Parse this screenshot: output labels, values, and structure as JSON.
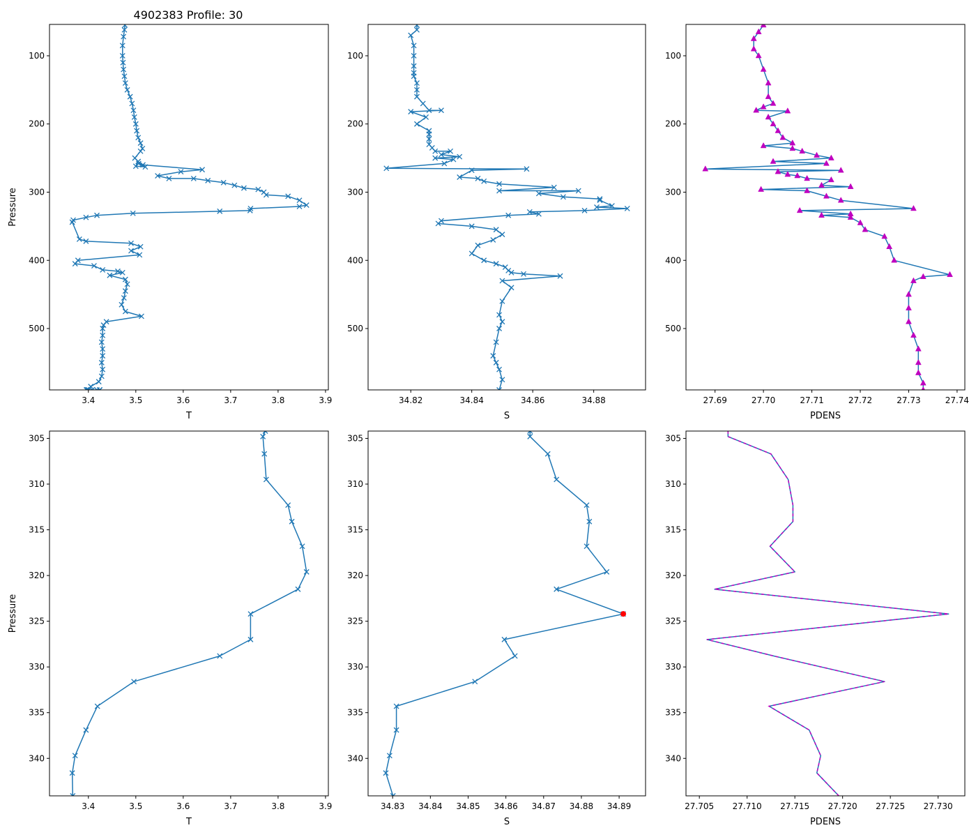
{
  "figure": {
    "title": "4902383 Profile: 30",
    "colors": {
      "line": "#1f77b4",
      "marker_pdens": "#bf00bf",
      "flag": "#ff0000",
      "axis": "#000000",
      "background": "#ffffff"
    }
  },
  "chart_data": [
    {
      "id": "top-T",
      "type": "line",
      "marker": "x",
      "xlabel": "T",
      "ylabel": "Pressure",
      "xlim": [
        3.318,
        3.906
      ],
      "ylim": [
        590,
        54
      ],
      "xticks": [
        3.4,
        3.5,
        3.6,
        3.7,
        3.8,
        3.9
      ],
      "yticks": [
        100,
        200,
        300,
        400,
        500
      ],
      "xtick_labels": [
        "3.4",
        "3.5",
        "3.6",
        "3.7",
        "3.8",
        "3.9"
      ],
      "ytick_labels": [
        "100",
        "200",
        "300",
        "400",
        "500"
      ],
      "x": [
        3.477,
        3.476,
        3.474,
        3.472,
        3.472,
        3.473,
        3.474,
        3.476,
        3.478,
        3.482,
        3.488,
        3.492,
        3.495,
        3.497,
        3.5,
        3.502,
        3.505,
        3.51,
        3.514,
        3.51,
        3.498,
        3.505,
        3.5,
        3.52,
        3.506,
        3.515,
        3.64,
        3.595,
        3.546,
        3.57,
        3.622,
        3.652,
        3.685,
        3.708,
        3.728,
        3.758,
        3.77,
        3.775,
        3.821,
        3.845,
        3.86,
        3.845,
        3.742,
        3.741,
        3.677,
        3.494,
        3.418,
        3.395,
        3.368,
        3.366,
        3.381,
        3.395,
        3.49,
        3.51,
        3.49,
        3.508,
        3.378,
        3.372,
        3.412,
        3.43,
        3.462,
        3.472,
        3.445,
        3.478,
        3.482,
        3.478,
        3.475,
        3.47,
        3.478,
        3.512,
        3.438,
        3.432,
        3.43,
        3.43,
        3.428,
        3.43,
        3.43,
        3.428,
        3.43,
        3.428,
        3.422,
        3.405,
        3.4,
        3.4,
        3.4,
        3.398,
        3.397,
        3.396,
        3.396,
        3.4,
        3.408,
        3.418,
        3.424,
        3.424,
        3.424,
        3.424
      ],
      "y": [
        55,
        62,
        72,
        85,
        100,
        110,
        120,
        130,
        140,
        150,
        160,
        170,
        180,
        190,
        200,
        210,
        220,
        228,
        236,
        240,
        250,
        255,
        262,
        263,
        258,
        260,
        267,
        270,
        276,
        280,
        280,
        283,
        286,
        290,
        294,
        296,
        300,
        304,
        306,
        312,
        319,
        321,
        324,
        327,
        328,
        331,
        334,
        337,
        341,
        344,
        369,
        372,
        375,
        380,
        386,
        392,
        400,
        405,
        408,
        414,
        416,
        418,
        422,
        428,
        435,
        445,
        455,
        465,
        475,
        482,
        490,
        495,
        500,
        510,
        520,
        530,
        540,
        550,
        560,
        570,
        578,
        585,
        590,
        590,
        590,
        590,
        590,
        590,
        590,
        590,
        590,
        590,
        590,
        590,
        590,
        590
      ]
    },
    {
      "id": "top-S",
      "type": "line",
      "marker": "x",
      "xlabel": "S",
      "ylim": [
        590,
        54
      ],
      "xlim": [
        34.806,
        34.897
      ],
      "xticks": [
        34.82,
        34.84,
        34.86,
        34.88
      ],
      "yticks": [
        100,
        200,
        300,
        400,
        500
      ],
      "xtick_labels": [
        "34.82",
        "34.84",
        "34.86",
        "34.88"
      ],
      "ytick_labels": [
        "100",
        "200",
        "300",
        "400",
        "500"
      ],
      "x": [
        34.822,
        34.822,
        34.82,
        34.821,
        34.821,
        34.821,
        34.821,
        34.821,
        34.822,
        34.822,
        34.822,
        34.824,
        34.826,
        34.83,
        34.82,
        34.825,
        34.822,
        34.826,
        34.826,
        34.826,
        34.826,
        34.827,
        34.828,
        34.833,
        34.83,
        34.836,
        34.828,
        34.834,
        34.831,
        34.812,
        34.858,
        34.84,
        34.836,
        34.842,
        34.844,
        34.849,
        34.867,
        34.849,
        34.875,
        34.862,
        34.87,
        34.882,
        34.882,
        34.886,
        34.881,
        34.891,
        34.877,
        34.859,
        34.862,
        34.852,
        34.83,
        34.829,
        34.84,
        34.848,
        34.85,
        34.847,
        34.842,
        34.84,
        34.844,
        34.848,
        34.851,
        34.852,
        34.853,
        34.857,
        34.869,
        34.85,
        34.853,
        34.85,
        34.849,
        34.85,
        34.849,
        34.848,
        34.847,
        34.848,
        34.849,
        34.85,
        34.849
      ],
      "y": [
        55,
        62,
        70,
        85,
        100,
        115,
        125,
        130,
        140,
        150,
        160,
        170,
        180,
        180,
        182,
        190,
        200,
        210,
        215,
        222,
        230,
        235,
        240,
        240,
        245,
        248,
        250,
        252,
        258,
        265,
        266,
        268,
        278,
        280,
        284,
        288,
        293,
        298,
        298,
        302,
        307,
        310,
        312,
        320,
        322,
        324,
        327,
        329,
        332,
        334,
        342,
        346,
        350,
        355,
        362,
        370,
        378,
        390,
        400,
        405,
        410,
        415,
        418,
        420,
        423,
        430,
        440,
        460,
        480,
        490,
        500,
        520,
        540,
        550,
        560,
        575,
        590
      ]
    },
    {
      "id": "top-PDENS",
      "type": "line",
      "marker": "^",
      "xlabel": "PDENS",
      "ylim": [
        590,
        54
      ],
      "xlim": [
        27.684,
        27.7416
      ],
      "xticks": [
        27.69,
        27.7,
        27.71,
        27.72,
        27.73,
        27.74
      ],
      "yticks": [
        100,
        200,
        300,
        400,
        500
      ],
      "xtick_labels": [
        "27.69",
        "27.70",
        "27.71",
        "27.72",
        "27.73",
        "27.74"
      ],
      "ytick_labels": [
        "100",
        "200",
        "300",
        "400",
        "500"
      ],
      "x": [
        27.7,
        27.699,
        27.698,
        27.698,
        27.699,
        27.7,
        27.701,
        27.701,
        27.702,
        27.7,
        27.6985,
        27.705,
        27.701,
        27.702,
        27.703,
        27.704,
        27.706,
        27.7,
        27.706,
        27.708,
        27.711,
        27.714,
        27.702,
        27.713,
        27.688,
        27.716,
        27.703,
        27.705,
        27.707,
        27.709,
        27.714,
        27.712,
        27.718,
        27.6995,
        27.709,
        27.713,
        27.716,
        27.731,
        27.7075,
        27.718,
        27.712,
        27.718,
        27.72,
        27.721,
        27.725,
        27.726,
        27.727,
        27.7385,
        27.733,
        27.731,
        27.73,
        27.73,
        27.73,
        27.731,
        27.732,
        27.732,
        27.732,
        27.733,
        27.733
      ],
      "y": [
        55,
        65,
        75,
        90,
        100,
        120,
        140,
        160,
        170,
        175,
        180,
        181,
        190,
        200,
        210,
        220,
        228,
        232,
        236,
        240,
        246,
        250,
        255,
        258,
        266,
        268,
        270,
        274,
        276,
        280,
        282,
        290,
        292,
        296,
        298,
        306,
        312,
        324,
        327,
        332,
        334,
        337,
        345,
        355,
        365,
        380,
        400,
        421,
        424,
        430,
        450,
        470,
        490,
        510,
        530,
        550,
        565,
        580,
        590
      ]
    },
    {
      "id": "bottom-T",
      "type": "line",
      "marker": "x",
      "xlabel": "T",
      "ylabel": "Pressure",
      "xlim": [
        3.318,
        3.906
      ],
      "ylim": [
        344.1,
        304.2
      ],
      "xticks": [
        3.4,
        3.5,
        3.6,
        3.7,
        3.8,
        3.9
      ],
      "yticks": [
        305,
        310,
        315,
        320,
        325,
        330,
        335,
        340
      ],
      "xtick_labels": [
        "3.4",
        "3.5",
        "3.6",
        "3.7",
        "3.8",
        "3.9"
      ],
      "ytick_labels": [
        "305",
        "310",
        "315",
        "320",
        "325",
        "330",
        "335",
        "340"
      ],
      "x": [
        3.773,
        3.768,
        3.771,
        3.775,
        3.821,
        3.829,
        3.851,
        3.86,
        3.842,
        3.742,
        3.742,
        3.677,
        3.496,
        3.419,
        3.395,
        3.372,
        3.366,
        3.367
      ],
      "y": [
        304.2,
        304.8,
        306.7,
        309.5,
        312.3,
        314.1,
        316.8,
        319.6,
        321.5,
        324.2,
        327.0,
        328.8,
        331.6,
        334.3,
        336.9,
        339.7,
        341.6,
        344.1
      ]
    },
    {
      "id": "bottom-S",
      "type": "line",
      "marker": "x",
      "xlabel": "S",
      "xlim": [
        34.8235,
        34.897
      ],
      "ylim": [
        344.1,
        304.2
      ],
      "xticks": [
        34.83,
        34.84,
        34.85,
        34.86,
        34.87,
        34.88,
        34.89
      ],
      "yticks": [
        305,
        310,
        315,
        320,
        325,
        330,
        335,
        340
      ],
      "xtick_labels": [
        "34.83",
        "34.84",
        "34.85",
        "34.86",
        "34.87",
        "34.88",
        "34.89"
      ],
      "ytick_labels": [
        "305",
        "310",
        "315",
        "320",
        "325",
        "330",
        "335",
        "340"
      ],
      "x": [
        34.8664,
        34.8664,
        34.8711,
        34.8734,
        34.8814,
        34.8821,
        34.8814,
        34.8867,
        34.8734,
        34.8911,
        34.8596,
        34.8624,
        34.8518,
        34.831,
        34.831,
        34.8292,
        34.8282,
        34.8301
      ],
      "y": [
        304.2,
        304.8,
        306.7,
        309.5,
        312.3,
        314.1,
        316.8,
        319.6,
        321.5,
        324.2,
        327.0,
        328.8,
        331.6,
        334.3,
        336.9,
        339.7,
        341.6,
        344.1
      ],
      "flag_point": {
        "x": 34.8911,
        "y": 324.2
      }
    },
    {
      "id": "bottom-PDENS",
      "type": "line",
      "marker": "none",
      "xlabel": "PDENS",
      "xlim": [
        27.7036,
        27.7328
      ],
      "ylim": [
        344.1,
        304.2
      ],
      "xticks": [
        27.705,
        27.71,
        27.715,
        27.72,
        27.725,
        27.73
      ],
      "yticks": [
        305,
        310,
        315,
        320,
        325,
        330,
        335,
        340
      ],
      "xtick_labels": [
        "27.705",
        "27.710",
        "27.715",
        "27.720",
        "27.725",
        "27.730"
      ],
      "ytick_labels": [
        "305",
        "310",
        "315",
        "320",
        "325",
        "330",
        "335",
        "340"
      ],
      "x": [
        27.708,
        27.708,
        27.7125,
        27.7143,
        27.7148,
        27.7148,
        27.7124,
        27.715,
        27.7066,
        27.7311,
        27.7058,
        27.7128,
        27.7244,
        27.7123,
        27.7165,
        27.7177,
        27.7173,
        27.7196
      ],
      "y": [
        304.2,
        304.8,
        306.7,
        309.5,
        312.3,
        314.1,
        316.8,
        319.6,
        321.5,
        324.2,
        327.0,
        328.8,
        331.6,
        334.3,
        336.9,
        339.7,
        341.6,
        344.1
      ],
      "dashed_overlay": true
    }
  ]
}
